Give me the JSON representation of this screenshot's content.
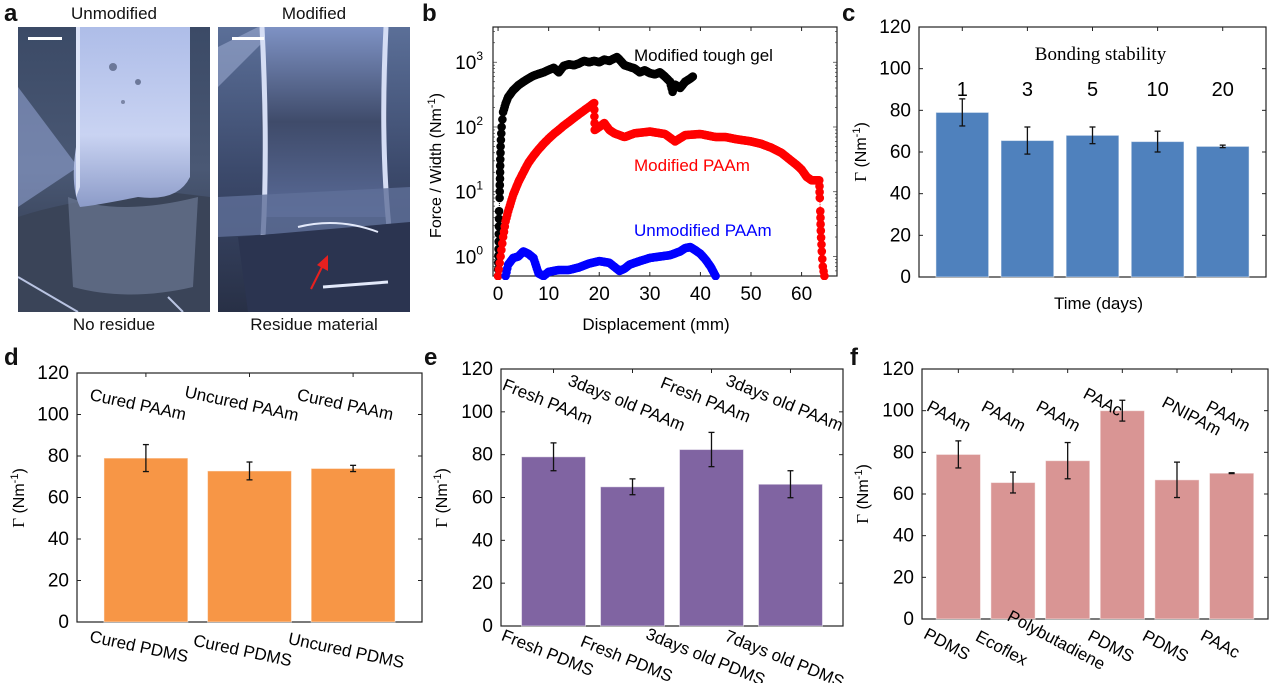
{
  "panels": {
    "a": {
      "letter": "a",
      "left_title": "Unmodified",
      "right_title": "Modified",
      "left_caption": "No residue",
      "right_caption": "Residue material",
      "arrow_color": "#e8201f"
    },
    "b": {
      "letter": "b"
    },
    "c": {
      "letter": "c"
    },
    "d": {
      "letter": "d"
    },
    "e": {
      "letter": "e"
    },
    "f": {
      "letter": "f"
    }
  },
  "chart_data": [
    {
      "id": "b",
      "type": "scatter",
      "title": "",
      "xlabel": "Displacement (mm)",
      "ylabel": "Force / Width (Nm⁻¹)",
      "yscale": "log",
      "xlim": [
        -1,
        67
      ],
      "ylim": [
        0.5,
        3500
      ],
      "xticks": [
        0,
        10,
        20,
        30,
        40,
        50,
        60
      ],
      "yticks": [
        {
          "value": 1,
          "label": "10",
          "exp": "0"
        },
        {
          "value": 10,
          "label": "10",
          "exp": "1"
        },
        {
          "value": 100,
          "label": "10",
          "exp": "2"
        },
        {
          "value": 1000,
          "label": "10",
          "exp": "3"
        }
      ],
      "series": [
        {
          "name": "Modified tough gel",
          "color": "#000000",
          "x": [
            0,
            0.1,
            0.2,
            0.3,
            0.4,
            0.5,
            0.7,
            1,
            1.5,
            2,
            3,
            4,
            5,
            6,
            7,
            8,
            9,
            10,
            11,
            12,
            13,
            14,
            15,
            16,
            17,
            18,
            19,
            20,
            21,
            22,
            23,
            23.5,
            24,
            25,
            26,
            27,
            28,
            29,
            30,
            31,
            32,
            33,
            34,
            34.5,
            35,
            36,
            37,
            38,
            38.5
          ],
          "y": [
            0.5,
            1.3,
            5,
            8,
            20,
            50,
            100,
            170,
            230,
            290,
            370,
            440,
            500,
            560,
            620,
            660,
            700,
            760,
            820,
            700,
            880,
            930,
            900,
            960,
            1050,
            1000,
            1050,
            1000,
            1100,
            1050,
            1150,
            1200,
            1100,
            900,
            850,
            800,
            700,
            750,
            680,
            650,
            700,
            600,
            500,
            350,
            450,
            400,
            500,
            560,
            600
          ]
        },
        {
          "name": "Modified PAAm",
          "color": "#ff0000",
          "x": [
            0,
            0.5,
            1,
            1.5,
            2,
            3,
            4,
            5,
            6,
            7,
            8,
            9,
            10,
            11,
            12,
            13,
            14,
            15,
            16,
            17,
            18,
            19,
            19.1,
            20,
            21,
            22,
            23,
            25,
            27,
            30,
            33,
            35,
            37,
            40,
            43,
            45,
            47,
            50,
            52,
            54,
            56,
            58,
            59,
            60,
            61,
            62,
            63,
            63.5,
            63.6,
            63.7,
            63.8,
            64,
            64.2,
            64.5
          ],
          "y": [
            0.5,
            1,
            2,
            3.5,
            5,
            9,
            14,
            20,
            28,
            36,
            45,
            55,
            66,
            78,
            90,
            105,
            120,
            138,
            158,
            180,
            205,
            235,
            90,
            100,
            115,
            90,
            80,
            70,
            80,
            85,
            78,
            60,
            75,
            78,
            70,
            70,
            65,
            60,
            55,
            48,
            40,
            30,
            26,
            22,
            17,
            15,
            15,
            15,
            8,
            5,
            2.5,
            1.2,
            0.7,
            0.5
          ]
        },
        {
          "name": "Unmodified PAAm",
          "color": "#0000ff",
          "x": [
            1.5,
            2,
            3,
            4,
            5,
            6,
            7,
            8,
            9,
            10,
            12,
            14,
            16,
            18,
            20,
            22,
            24,
            25,
            26,
            28,
            30,
            32,
            34,
            36,
            37,
            38,
            39,
            40,
            41,
            42,
            43
          ],
          "y": [
            0.5,
            0.75,
            0.95,
            1.0,
            1.2,
            1.1,
            0.95,
            0.55,
            0.5,
            0.58,
            0.62,
            0.62,
            0.68,
            0.78,
            0.85,
            0.8,
            0.6,
            0.65,
            0.75,
            0.85,
            0.95,
            1.0,
            1.05,
            1.2,
            1.35,
            1.4,
            1.25,
            1.1,
            0.9,
            0.7,
            0.5
          ]
        }
      ],
      "annotations": [
        {
          "text": "Modified tough gel",
          "color": "#000000"
        },
        {
          "text": "Modified PAAm",
          "color": "#ff0000"
        },
        {
          "text": "Unmodified PAAm",
          "color": "#0000ff"
        }
      ]
    },
    {
      "id": "c",
      "type": "bar",
      "title": "Bonding stability",
      "xlabel": "Time (days)",
      "ylabel": "Γ (Nm⁻¹)",
      "ylim": [
        0,
        120
      ],
      "yticks": [
        0,
        20,
        40,
        60,
        80,
        100,
        120
      ],
      "bar_color": "#4f81bd",
      "categories": [
        "1",
        "3",
        "5",
        "10",
        "20"
      ],
      "values": [
        79,
        65.5,
        68,
        65,
        62.7
      ],
      "errors": [
        6.5,
        6.5,
        4,
        5,
        0.6
      ]
    },
    {
      "id": "d",
      "type": "bar",
      "title": "",
      "xlabel": "",
      "ylabel": "Γ (Nm⁻¹)",
      "ylim": [
        0,
        120
      ],
      "yticks": [
        0,
        20,
        40,
        60,
        80,
        100,
        120
      ],
      "bar_color": "#f79646",
      "top_labels": [
        "Cured PAAm",
        "Uncured PAAm",
        "Cured PAAm"
      ],
      "categories": [
        "Cured PDMS",
        "Cured PDMS",
        "Uncured PDMS"
      ],
      "values": [
        79,
        72.8,
        74
      ],
      "errors": [
        6.5,
        4.3,
        1.5
      ]
    },
    {
      "id": "e",
      "type": "bar",
      "title": "",
      "xlabel": "",
      "ylabel": "Γ (Nm⁻¹)",
      "ylim": [
        0,
        120
      ],
      "yticks": [
        0,
        20,
        40,
        60,
        80,
        100,
        120
      ],
      "bar_color": "#8064a2",
      "top_labels": [
        "Fresh PAAm",
        "3days old PAAm",
        "Fresh PAAm",
        "3days old PAAm"
      ],
      "categories": [
        "Fresh PDMS",
        "Fresh PDMS",
        "3days old PDMS",
        "7days old PDMS"
      ],
      "values": [
        79,
        65,
        82.4,
        66.2
      ],
      "errors": [
        6.5,
        3.7,
        8,
        6.3
      ]
    },
    {
      "id": "f",
      "type": "bar",
      "title": "",
      "xlabel": "",
      "ylabel": "Γ (Nm⁻¹)",
      "ylim": [
        0,
        120
      ],
      "yticks": [
        0,
        20,
        40,
        60,
        80,
        100,
        120
      ],
      "bar_color": "#d99594",
      "top_labels": [
        "PAAm",
        "PAAm",
        "PAAm",
        "PAAc",
        "PNIPAm",
        "PAAm"
      ],
      "categories": [
        "PDMS",
        "Ecoflex",
        "Polybutadiene",
        "PDMS",
        "PDMS",
        "PAAc"
      ],
      "values": [
        79,
        65.5,
        76,
        100,
        66.8,
        70
      ],
      "errors": [
        6.5,
        5,
        8.7,
        5,
        8.5,
        0.2
      ]
    }
  ]
}
